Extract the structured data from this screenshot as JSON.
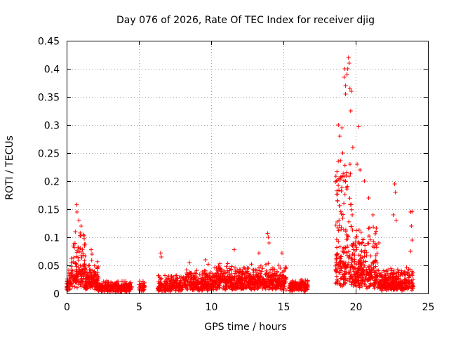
{
  "chart_data": {
    "type": "scatter",
    "title": "Day 076 of 2026, Rate Of TEC Index for receiver djig",
    "xlabel": "GPS time / hours",
    "ylabel": "ROTI / TECUs",
    "xlim": [
      0,
      25
    ],
    "ylim": [
      0,
      0.45
    ],
    "xticks": [
      0,
      5,
      10,
      15,
      20,
      25
    ],
    "yticks": [
      0,
      0.05,
      0.1,
      0.15,
      0.2,
      0.25,
      0.3,
      0.35,
      0.4,
      0.45
    ],
    "xtick_labels": [
      "0",
      "5",
      "10",
      "15",
      "20",
      "25"
    ],
    "ytick_labels": [
      "0",
      "0.05",
      "0.1",
      "0.15",
      "0.2",
      "0.25",
      "0.3",
      "0.35",
      "0.4",
      "0.45"
    ],
    "grid": true,
    "marker": "+",
    "color": "#ff0000",
    "series": [
      {
        "name": "ROTI",
        "segments": [
          {
            "x_start": 0.0,
            "x_end": 0.3,
            "base": 0.018,
            "spread": 0.03,
            "density": 120
          },
          {
            "x_start": 0.3,
            "x_end": 1.3,
            "base": 0.03,
            "spread": 0.07,
            "density": 140
          },
          {
            "x_start": 1.3,
            "x_end": 2.2,
            "base": 0.02,
            "spread": 0.035,
            "density": 140
          },
          {
            "x_start": 2.2,
            "x_end": 4.5,
            "base": 0.01,
            "spread": 0.012,
            "density": 110
          },
          {
            "x_start": 5.0,
            "x_end": 5.4,
            "base": 0.012,
            "spread": 0.012,
            "density": 80
          },
          {
            "x_start": 6.3,
            "x_end": 8.0,
            "base": 0.012,
            "spread": 0.02,
            "density": 110
          },
          {
            "x_start": 8.0,
            "x_end": 10.2,
            "base": 0.015,
            "spread": 0.025,
            "density": 120
          },
          {
            "x_start": 10.2,
            "x_end": 12.0,
            "base": 0.02,
            "spread": 0.03,
            "density": 130
          },
          {
            "x_start": 12.0,
            "x_end": 15.2,
            "base": 0.02,
            "spread": 0.03,
            "density": 130
          },
          {
            "x_start": 15.4,
            "x_end": 16.7,
            "base": 0.012,
            "spread": 0.015,
            "density": 110
          },
          {
            "x_start": 18.6,
            "x_end": 19.8,
            "base": 0.04,
            "spread": 0.2,
            "density": 170
          },
          {
            "x_start": 19.8,
            "x_end": 21.5,
            "base": 0.03,
            "spread": 0.09,
            "density": 150
          },
          {
            "x_start": 21.5,
            "x_end": 24.0,
            "base": 0.015,
            "spread": 0.03,
            "density": 130
          }
        ],
        "outliers": [
          {
            "x": 0.7,
            "y": 0.158
          },
          {
            "x": 0.72,
            "y": 0.145
          },
          {
            "x": 0.85,
            "y": 0.13
          },
          {
            "x": 1.0,
            "y": 0.12
          },
          {
            "x": 0.6,
            "y": 0.11
          },
          {
            "x": 1.7,
            "y": 0.078
          },
          {
            "x": 1.75,
            "y": 0.07
          },
          {
            "x": 6.5,
            "y": 0.072
          },
          {
            "x": 6.55,
            "y": 0.065
          },
          {
            "x": 8.5,
            "y": 0.055
          },
          {
            "x": 9.6,
            "y": 0.06
          },
          {
            "x": 9.8,
            "y": 0.052
          },
          {
            "x": 11.6,
            "y": 0.078
          },
          {
            "x": 13.3,
            "y": 0.072
          },
          {
            "x": 13.9,
            "y": 0.107
          },
          {
            "x": 13.95,
            "y": 0.1
          },
          {
            "x": 14.0,
            "y": 0.09
          },
          {
            "x": 14.9,
            "y": 0.072
          },
          {
            "x": 18.8,
            "y": 0.3
          },
          {
            "x": 18.9,
            "y": 0.28
          },
          {
            "x": 19.05,
            "y": 0.295
          },
          {
            "x": 19.2,
            "y": 0.385
          },
          {
            "x": 19.25,
            "y": 0.4
          },
          {
            "x": 19.3,
            "y": 0.37
          },
          {
            "x": 19.4,
            "y": 0.39
          },
          {
            "x": 19.5,
            "y": 0.42
          },
          {
            "x": 19.55,
            "y": 0.41
          },
          {
            "x": 19.45,
            "y": 0.4
          },
          {
            "x": 19.6,
            "y": 0.365
          },
          {
            "x": 19.65,
            "y": 0.325
          },
          {
            "x": 19.3,
            "y": 0.355
          },
          {
            "x": 19.7,
            "y": 0.36
          },
          {
            "x": 20.2,
            "y": 0.297
          },
          {
            "x": 19.1,
            "y": 0.25
          },
          {
            "x": 19.8,
            "y": 0.26
          },
          {
            "x": 20.1,
            "y": 0.23
          },
          {
            "x": 20.3,
            "y": 0.22
          },
          {
            "x": 20.6,
            "y": 0.2
          },
          {
            "x": 20.9,
            "y": 0.17
          },
          {
            "x": 21.2,
            "y": 0.14
          },
          {
            "x": 21.6,
            "y": 0.09
          },
          {
            "x": 22.7,
            "y": 0.195
          },
          {
            "x": 22.75,
            "y": 0.18
          },
          {
            "x": 22.6,
            "y": 0.14
          },
          {
            "x": 22.8,
            "y": 0.13
          },
          {
            "x": 23.8,
            "y": 0.145
          },
          {
            "x": 23.9,
            "y": 0.146
          },
          {
            "x": 23.85,
            "y": 0.12
          },
          {
            "x": 23.9,
            "y": 0.095
          },
          {
            "x": 23.8,
            "y": 0.075
          }
        ]
      }
    ]
  }
}
